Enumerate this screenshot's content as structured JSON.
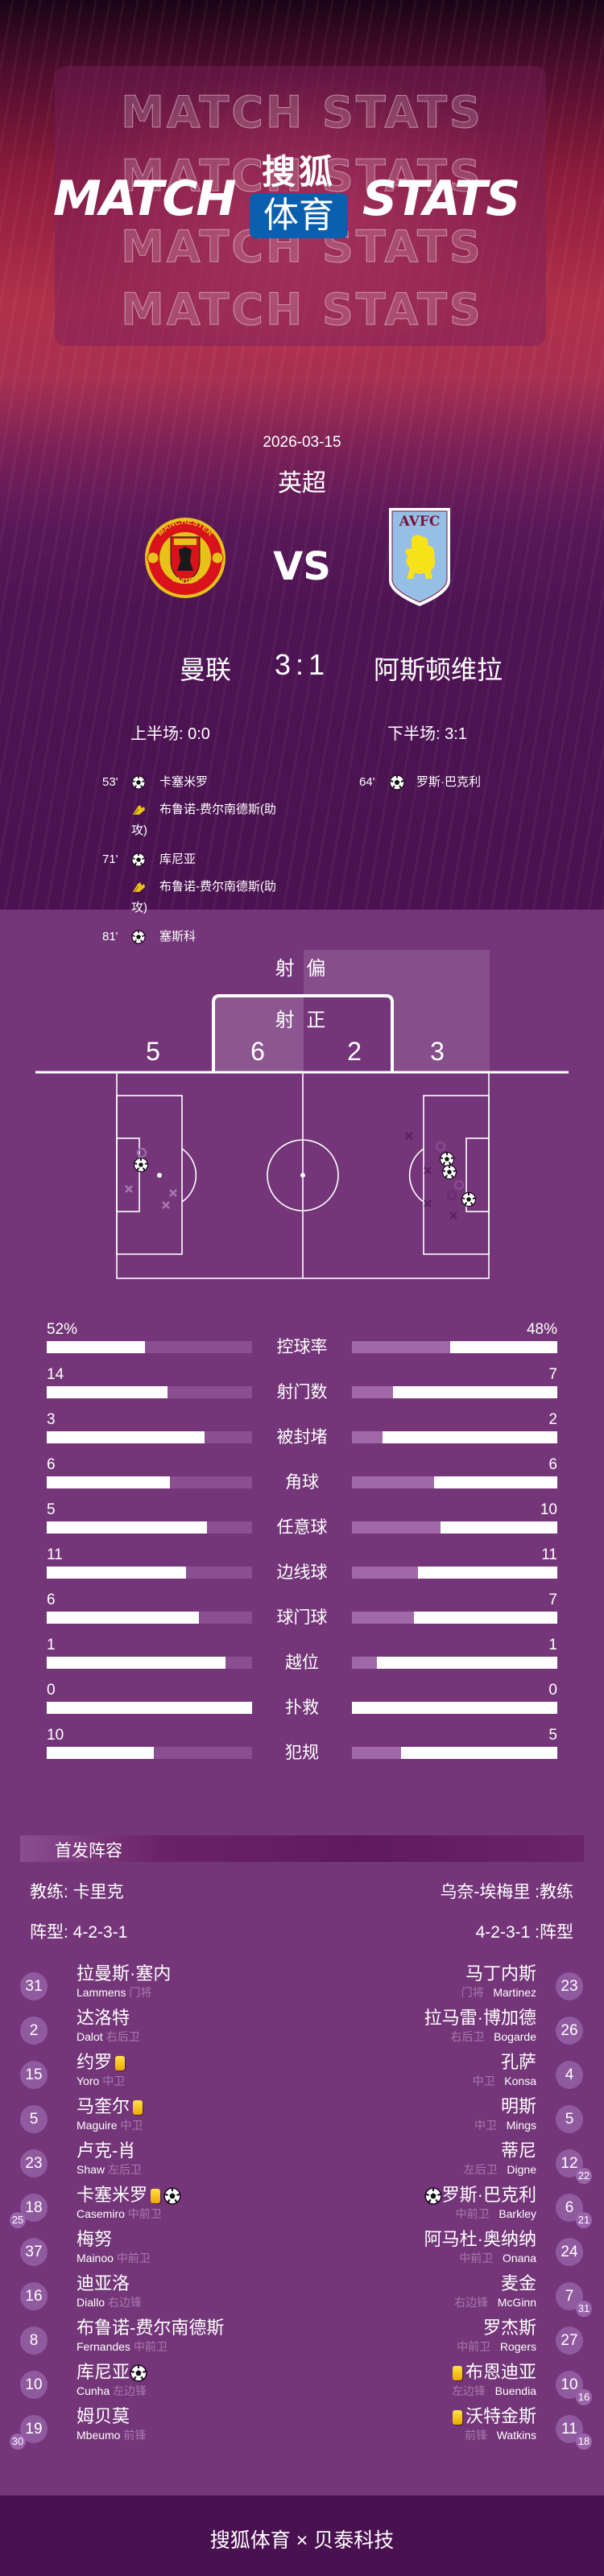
{
  "header": {
    "watermark": "MATCH STATS",
    "title_left": "MATCH",
    "title_right": "STATS",
    "brand_top": "搜狐",
    "brand_box": "体育",
    "brand_color": "#0a5fae"
  },
  "match": {
    "date": "2026-03-15",
    "league": "英超",
    "vs": "VS",
    "home": {
      "name": "曼联",
      "crest_text": "MANCHESTER UNITED"
    },
    "away": {
      "name": "阿斯顿维拉",
      "crest_text": "AVFC"
    },
    "score": "3:1",
    "first_half": "上半场: 0:0",
    "second_half": "下半场: 3:1"
  },
  "events": {
    "home": [
      {
        "minute": "53'",
        "type": "goal",
        "player": "卡塞米罗",
        "assist": "布鲁诺-费尔南德斯(助",
        "assist_wrap": "攻)"
      },
      {
        "minute": "71'",
        "type": "goal",
        "player": "库尼亚",
        "assist": "布鲁诺-费尔南德斯(助",
        "assist_wrap": "攻)"
      },
      {
        "minute": "81'",
        "type": "goal",
        "player": "塞斯科"
      }
    ],
    "away": [
      {
        "minute": "64'",
        "type": "goal",
        "player": "罗斯·巴克利"
      }
    ]
  },
  "shots": {
    "off_target_label": "射 偏",
    "on_target_label": "射 正",
    "home_off_target": "5",
    "home_on_target": "6",
    "away_on_target": "2",
    "away_off_target": "3"
  },
  "stats": [
    {
      "label": "控球率",
      "home": "52%",
      "away": "48%",
      "home_fill": 0.48,
      "away_fill": 0.52
    },
    {
      "label": "射门数",
      "home": "14",
      "away": "7",
      "home_fill": 0.59,
      "away_fill": 0.8
    },
    {
      "label": "被封堵",
      "home": "3",
      "away": "2",
      "home_fill": 0.77,
      "away_fill": 0.85
    },
    {
      "label": "角球",
      "home": "6",
      "away": "6",
      "home_fill": 0.6,
      "away_fill": 0.6
    },
    {
      "label": "任意球",
      "home": "5",
      "away": "10",
      "home_fill": 0.78,
      "away_fill": 0.57
    },
    {
      "label": "边线球",
      "home": "11",
      "away": "11",
      "home_fill": 0.68,
      "away_fill": 0.68
    },
    {
      "label": "球门球",
      "home": "6",
      "away": "7",
      "home_fill": 0.74,
      "away_fill": 0.7
    },
    {
      "label": "越位",
      "home": "1",
      "away": "1",
      "home_fill": 0.87,
      "away_fill": 0.88
    },
    {
      "label": "扑救",
      "home": "0",
      "away": "0",
      "home_fill": 1.0,
      "away_fill": 1.0
    },
    {
      "label": "犯规",
      "home": "10",
      "away": "5",
      "home_fill": 0.52,
      "away_fill": 0.76
    }
  ],
  "lineup": {
    "title": "首发阵容",
    "home_coach": "教练: 卡里克",
    "away_coach": "乌奈-埃梅里 :教练",
    "home_formation": "阵型: 4-2-3-1",
    "away_formation": "4-2-3-1 :阵型",
    "home": [
      {
        "num": "31",
        "cn": "拉曼斯·塞内",
        "en": "Lammens",
        "pos": "门将"
      },
      {
        "num": "2",
        "cn": "达洛特",
        "en": "Dalot",
        "pos": "右后卫"
      },
      {
        "num": "15",
        "cn": "约罗",
        "en": "Yoro",
        "pos": "中卫",
        "yellow": true
      },
      {
        "num": "5",
        "cn": "马奎尔",
        "en": "Maguire",
        "pos": "中卫",
        "yellow": true
      },
      {
        "num": "23",
        "cn": "卢克-肖",
        "en": "Shaw",
        "pos": "左后卫"
      },
      {
        "num": "18",
        "cn": "卡塞米罗",
        "en": "Casemiro",
        "pos": "中前卫",
        "yellow": true,
        "goal": true,
        "sub": "25"
      },
      {
        "num": "37",
        "cn": "梅努",
        "en": "Mainoo",
        "pos": "中前卫"
      },
      {
        "num": "16",
        "cn": "迪亚洛",
        "en": "Diallo",
        "pos": "右边锋"
      },
      {
        "num": "8",
        "cn": "布鲁诺-费尔南德斯",
        "en": "Fernandes",
        "pos": "中前卫"
      },
      {
        "num": "10",
        "cn": "库尼亚",
        "en": "Cunha",
        "pos": "左边锋",
        "goal": true
      },
      {
        "num": "19",
        "cn": "姆贝莫",
        "en": "Mbeumo",
        "pos": "前锋",
        "sub": "30"
      }
    ],
    "away": [
      {
        "num": "23",
        "cn": "马丁内斯",
        "en": "Martinez",
        "pos": "门将"
      },
      {
        "num": "26",
        "cn": "拉马雷·博加德",
        "en": "Bogarde",
        "pos": "右后卫"
      },
      {
        "num": "4",
        "cn": "孔萨",
        "en": "Konsa",
        "pos": "中卫"
      },
      {
        "num": "5",
        "cn": "明斯",
        "en": "Mings",
        "pos": "中卫"
      },
      {
        "num": "12",
        "cn": "蒂尼",
        "en": "Digne",
        "pos": "左后卫",
        "sub": "22"
      },
      {
        "num": "6",
        "cn": "罗斯·巴克利",
        "en": "Barkley",
        "pos": "中前卫",
        "goal": true,
        "sub": "21"
      },
      {
        "num": "24",
        "cn": "阿马杜·奥纳纳",
        "en": "Onana",
        "pos": "中前卫"
      },
      {
        "num": "7",
        "cn": "麦金",
        "en": "McGinn",
        "pos": "右边锋",
        "sub": "31"
      },
      {
        "num": "27",
        "cn": "罗杰斯",
        "en": "Rogers",
        "pos": "中前卫"
      },
      {
        "num": "10",
        "cn": "布恩迪亚",
        "en": "Buendia",
        "pos": "左边锋",
        "yellow": true,
        "sub": "16"
      },
      {
        "num": "11",
        "cn": "沃特金斯",
        "en": "Watkins",
        "pos": "前锋",
        "yellow": true,
        "sub": "18"
      }
    ]
  },
  "footer": {
    "text": "搜狐体育 × 贝泰科技"
  },
  "colors": {
    "background": "#743679",
    "header_dark": "#4a1250",
    "card_yellow": "#f6c300",
    "bar_home_rest": "#8a4f90",
    "bar_away_rest": "#a068a8"
  }
}
